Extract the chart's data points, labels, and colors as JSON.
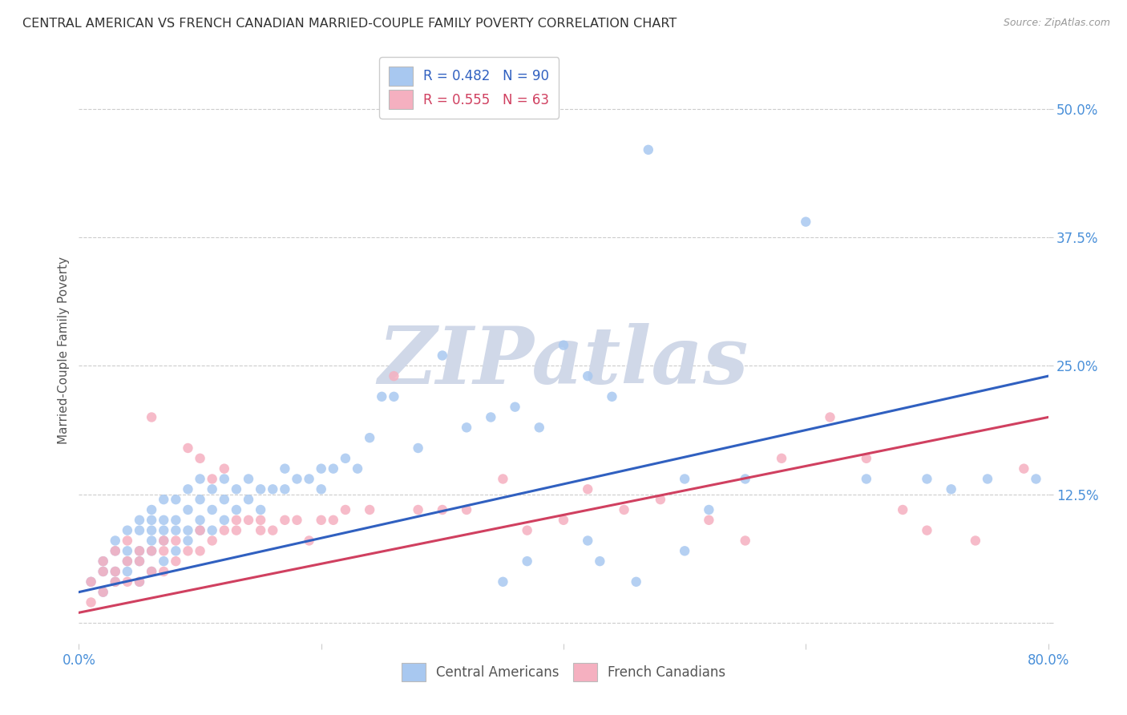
{
  "title": "CENTRAL AMERICAN VS FRENCH CANADIAN MARRIED-COUPLE FAMILY POVERTY CORRELATION CHART",
  "source": "Source: ZipAtlas.com",
  "ylabel": "Married-Couple Family Poverty",
  "xlim": [
    0.0,
    0.8
  ],
  "ylim": [
    -0.02,
    0.55
  ],
  "xticks": [
    0.0,
    0.2,
    0.4,
    0.6,
    0.8
  ],
  "xticklabels": [
    "0.0%",
    "",
    "",
    "",
    "80.0%"
  ],
  "yticks": [
    0.0,
    0.125,
    0.25,
    0.375,
    0.5
  ],
  "yticklabels": [
    "",
    "12.5%",
    "25.0%",
    "37.5%",
    "50.0%"
  ],
  "blue_R": 0.482,
  "blue_N": 90,
  "pink_R": 0.555,
  "pink_N": 63,
  "blue_color": "#A8C8F0",
  "pink_color": "#F5B0C0",
  "blue_line_color": "#3060C0",
  "pink_line_color": "#D04060",
  "legend_label_blue": "Central Americans",
  "legend_label_pink": "French Canadians",
  "watermark_text": "ZIPatlas",
  "watermark_color": "#D0D8E8",
  "background_color": "#FFFFFF",
  "grid_color": "#CCCCCC",
  "title_color": "#333333",
  "axis_label_color": "#555555",
  "tick_label_color": "#4A90D9",
  "blue_line_start_y": 0.03,
  "blue_line_end_y": 0.24,
  "pink_line_start_y": 0.01,
  "pink_line_end_y": 0.2,
  "blue_scatter_x": [
    0.01,
    0.02,
    0.02,
    0.02,
    0.03,
    0.03,
    0.03,
    0.03,
    0.04,
    0.04,
    0.04,
    0.04,
    0.05,
    0.05,
    0.05,
    0.05,
    0.05,
    0.06,
    0.06,
    0.06,
    0.06,
    0.06,
    0.06,
    0.07,
    0.07,
    0.07,
    0.07,
    0.07,
    0.08,
    0.08,
    0.08,
    0.08,
    0.09,
    0.09,
    0.09,
    0.09,
    0.1,
    0.1,
    0.1,
    0.1,
    0.11,
    0.11,
    0.11,
    0.12,
    0.12,
    0.12,
    0.13,
    0.13,
    0.14,
    0.14,
    0.15,
    0.15,
    0.16,
    0.17,
    0.17,
    0.18,
    0.19,
    0.2,
    0.2,
    0.21,
    0.22,
    0.23,
    0.24,
    0.25,
    0.26,
    0.28,
    0.3,
    0.32,
    0.34,
    0.36,
    0.38,
    0.4,
    0.42,
    0.44,
    0.47,
    0.5,
    0.55,
    0.6,
    0.65,
    0.7,
    0.72,
    0.75,
    0.35,
    0.37,
    0.42,
    0.43,
    0.46,
    0.5,
    0.52,
    0.79
  ],
  "blue_scatter_y": [
    0.04,
    0.03,
    0.05,
    0.06,
    0.04,
    0.05,
    0.07,
    0.08,
    0.05,
    0.06,
    0.07,
    0.09,
    0.04,
    0.06,
    0.07,
    0.09,
    0.1,
    0.05,
    0.07,
    0.08,
    0.09,
    0.1,
    0.11,
    0.06,
    0.08,
    0.09,
    0.1,
    0.12,
    0.07,
    0.09,
    0.1,
    0.12,
    0.08,
    0.09,
    0.11,
    0.13,
    0.09,
    0.1,
    0.12,
    0.14,
    0.09,
    0.11,
    0.13,
    0.1,
    0.12,
    0.14,
    0.11,
    0.13,
    0.12,
    0.14,
    0.11,
    0.13,
    0.13,
    0.13,
    0.15,
    0.14,
    0.14,
    0.13,
    0.15,
    0.15,
    0.16,
    0.15,
    0.18,
    0.22,
    0.22,
    0.17,
    0.26,
    0.19,
    0.2,
    0.21,
    0.19,
    0.27,
    0.24,
    0.22,
    0.46,
    0.14,
    0.14,
    0.39,
    0.14,
    0.14,
    0.13,
    0.14,
    0.04,
    0.06,
    0.08,
    0.06,
    0.04,
    0.07,
    0.11,
    0.14
  ],
  "pink_scatter_x": [
    0.01,
    0.01,
    0.02,
    0.02,
    0.02,
    0.03,
    0.03,
    0.03,
    0.04,
    0.04,
    0.04,
    0.05,
    0.05,
    0.05,
    0.06,
    0.06,
    0.06,
    0.07,
    0.07,
    0.07,
    0.08,
    0.08,
    0.09,
    0.09,
    0.1,
    0.1,
    0.1,
    0.11,
    0.11,
    0.12,
    0.12,
    0.13,
    0.13,
    0.14,
    0.15,
    0.15,
    0.16,
    0.17,
    0.18,
    0.19,
    0.2,
    0.21,
    0.22,
    0.24,
    0.26,
    0.28,
    0.3,
    0.32,
    0.35,
    0.37,
    0.4,
    0.42,
    0.45,
    0.48,
    0.52,
    0.55,
    0.58,
    0.62,
    0.65,
    0.68,
    0.7,
    0.74,
    0.78
  ],
  "pink_scatter_y": [
    0.02,
    0.04,
    0.03,
    0.05,
    0.06,
    0.04,
    0.05,
    0.07,
    0.04,
    0.06,
    0.08,
    0.04,
    0.06,
    0.07,
    0.05,
    0.07,
    0.2,
    0.05,
    0.07,
    0.08,
    0.06,
    0.08,
    0.07,
    0.17,
    0.07,
    0.09,
    0.16,
    0.08,
    0.14,
    0.09,
    0.15,
    0.09,
    0.1,
    0.1,
    0.09,
    0.1,
    0.09,
    0.1,
    0.1,
    0.08,
    0.1,
    0.1,
    0.11,
    0.11,
    0.24,
    0.11,
    0.11,
    0.11,
    0.14,
    0.09,
    0.1,
    0.13,
    0.11,
    0.12,
    0.1,
    0.08,
    0.16,
    0.2,
    0.16,
    0.11,
    0.09,
    0.08,
    0.15
  ]
}
